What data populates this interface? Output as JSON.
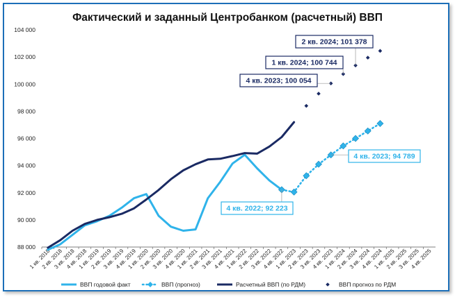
{
  "chart_data": {
    "type": "line",
    "title": "Фактический и заданный Центробанком (расчетный) ВВП",
    "xlabel": "",
    "ylabel": "",
    "ylim": [
      88000,
      104000
    ],
    "yticks": [
      "88 000",
      "90 000",
      "92 000",
      "94 000",
      "96 000",
      "98 000",
      "100 000",
      "102 000",
      "104 000"
    ],
    "ytick_values": [
      88000,
      90000,
      92000,
      94000,
      96000,
      98000,
      100000,
      102000,
      104000
    ],
    "categories": [
      "1 кв. 2018",
      "2 кв. 2018",
      "3 кв. 2018",
      "4 кв. 2018",
      "1 кв. 2019",
      "2 кв. 2019",
      "3 кв. 2019",
      "4 кв. 2019",
      "1 кв. 2020",
      "2 кв. 2020",
      "3 кв. 2020",
      "4 кв. 2020",
      "1 кв. 2021",
      "2 кв. 2021",
      "3 кв. 2021",
      "4 кв. 2021",
      "1 кв. 2022",
      "2 кв. 2022",
      "3 кв. 2022",
      "4 кв. 2022",
      "1 кв. 2023",
      "2 кв. 2023",
      "3 кв. 2023",
      "4 кв. 2023",
      "1 кв. 2024",
      "2 кв. 2024",
      "3 кв. 2024",
      "4 кв. 2024",
      "1 кв. 2025",
      "2 кв. 2025",
      "3 кв. 2025",
      "4 кв. 2025"
    ],
    "series": [
      {
        "name": "ВВП годовой факт",
        "color": "#2fb3ea",
        "style": "line",
        "values": [
          87800,
          88200,
          88900,
          89600,
          89900,
          90300,
          90900,
          91600,
          91900,
          90300,
          89500,
          89200,
          89300,
          91600,
          92800,
          94150,
          94800,
          93800,
          92900,
          92223,
          null,
          null,
          null,
          null,
          null,
          null,
          null,
          null,
          null,
          null,
          null,
          null
        ]
      },
      {
        "name": "ВВП (прогноз)",
        "color": "#2fb3ea",
        "style": "dotted-diamond",
        "values": [
          null,
          null,
          null,
          null,
          null,
          null,
          null,
          null,
          null,
          null,
          null,
          null,
          null,
          null,
          null,
          null,
          null,
          null,
          null,
          92223,
          92050,
          93250,
          94100,
          94789,
          95450,
          96000,
          96550,
          97100,
          null,
          null,
          null,
          null
        ]
      },
      {
        "name": "Расчетный ВВП (по РДМ)",
        "color": "#1a2a63",
        "style": "line",
        "values": [
          87950,
          88500,
          89200,
          89700,
          90000,
          90200,
          90450,
          90850,
          91500,
          92200,
          93000,
          93650,
          94100,
          94450,
          94500,
          94700,
          94920,
          94880,
          95400,
          96100,
          97200,
          null,
          null,
          null,
          null,
          null,
          null,
          null,
          null,
          null,
          null,
          null
        ]
      },
      {
        "name": "ВВП прогноз по РДМ",
        "color": "#1a2a63",
        "style": "markers-diamond",
        "values": [
          null,
          null,
          null,
          null,
          null,
          null,
          null,
          null,
          null,
          null,
          null,
          null,
          null,
          null,
          null,
          null,
          null,
          null,
          null,
          null,
          null,
          98400,
          99300,
          100054,
          100744,
          101378,
          101950,
          102450,
          null,
          null,
          null,
          null
        ]
      }
    ],
    "annotations": [
      {
        "text": "2 кв. 2024;  101 378",
        "series": "ВВП прогноз по РДМ",
        "category": "2 кв. 2024",
        "color": "#1a2a63"
      },
      {
        "text": "1 кв. 2024;  100 744",
        "series": "ВВП прогноз по РДМ",
        "category": "1 кв. 2024",
        "color": "#1a2a63"
      },
      {
        "text": "4 кв. 2023;  100 054",
        "series": "ВВП прогноз по РДМ",
        "category": "4 кв. 2023",
        "color": "#1a2a63"
      },
      {
        "text": "4 кв. 2023;  94 789",
        "series": "ВВП (прогноз)",
        "category": "4 кв. 2023",
        "color": "#2fb3ea"
      },
      {
        "text": "4 кв. 2022;  92 223",
        "series": "ВВП годовой факт",
        "category": "4 кв. 2022",
        "color": "#2fb3ea"
      }
    ],
    "legend": {
      "position": "bottom",
      "items": [
        "ВВП годовой факт",
        "ВВП (прогноз)",
        "Расчетный ВВП (по РДМ)",
        "ВВП прогноз по РДМ"
      ]
    },
    "grid": false
  }
}
